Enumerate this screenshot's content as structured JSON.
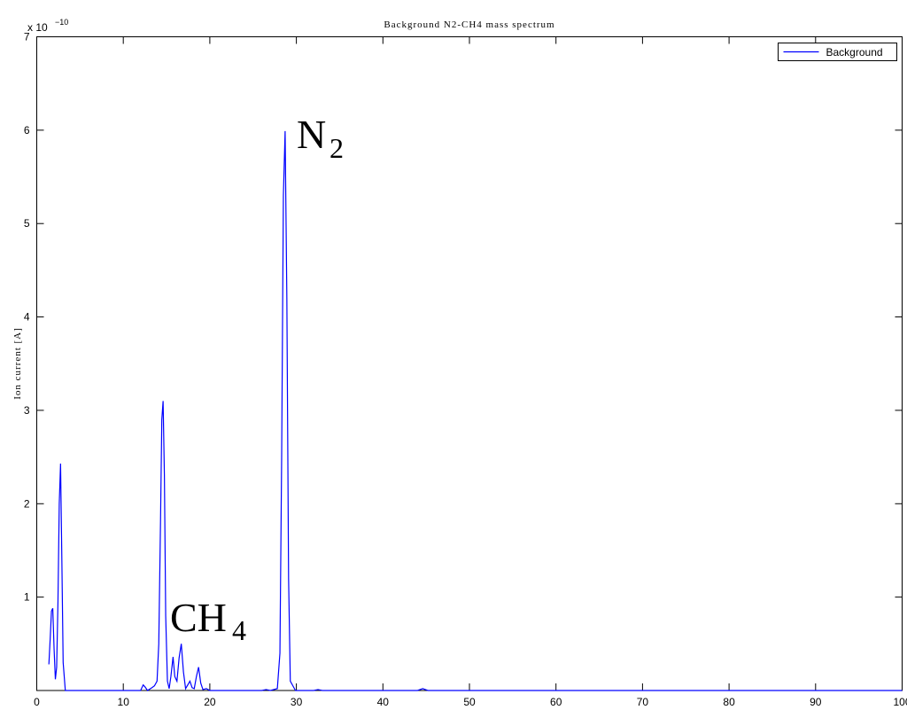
{
  "chart_data": {
    "type": "line",
    "title": "Background N2-CH4 mass spectrum",
    "y_label": "Ion current [A]",
    "y_scale_label": "x 10",
    "y_scale_exponent": "−10",
    "annotations": [
      {
        "text": "CH",
        "subscript": "4"
      },
      {
        "text": "N",
        "subscript": "2"
      }
    ],
    "x": [
      1.4,
      1.55,
      1.7,
      1.85,
      2.0,
      2.15,
      2.3,
      2.45,
      2.6,
      2.75,
      2.9,
      3.05,
      3.3,
      12.0,
      12.3,
      12.5,
      12.8,
      13.3,
      13.6,
      13.9,
      14.1,
      14.3,
      14.45,
      14.6,
      14.75,
      14.9,
      15.1,
      15.3,
      15.5,
      15.75,
      15.95,
      16.2,
      16.45,
      16.7,
      16.95,
      17.2,
      17.45,
      17.7,
      17.95,
      18.2,
      18.45,
      18.7,
      18.95,
      19.2,
      19.6,
      20.0,
      26.0,
      26.5,
      27.0,
      27.8,
      28.1,
      28.3,
      28.5,
      28.7,
      28.9,
      29.1,
      29.3,
      29.6,
      29.9,
      32.0,
      32.5,
      33.0,
      44.0,
      44.6,
      45.2,
      100
    ],
    "series": [
      {
        "name": "Background",
        "color": "#0000ff",
        "values": [
          0.28,
          0.55,
          0.85,
          0.88,
          0.45,
          0.12,
          0.25,
          0.95,
          2.0,
          2.43,
          1.4,
          0.3,
          0,
          0,
          0.06,
          0.04,
          0,
          0.03,
          0.05,
          0.1,
          0.5,
          1.8,
          2.9,
          3.1,
          2.3,
          0.8,
          0.1,
          0.02,
          0.15,
          0.36,
          0.15,
          0.1,
          0.35,
          0.5,
          0.2,
          0.02,
          0.06,
          0.1,
          0.03,
          0.02,
          0.15,
          0.25,
          0.08,
          0.01,
          0.02,
          0,
          0,
          0.01,
          0,
          0.02,
          0.4,
          2.5,
          5.3,
          5.99,
          4.2,
          1.2,
          0.1,
          0.05,
          0,
          0,
          0.01,
          0,
          0,
          0.02,
          0,
          0
        ]
      }
    ],
    "xlim": [
      0,
      100
    ],
    "xticks": [
      0,
      10,
      20,
      30,
      40,
      50,
      60,
      70,
      80,
      90,
      100
    ],
    "ylim": [
      0,
      7
    ],
    "yticks": [
      1,
      2,
      3,
      4,
      5,
      6,
      7
    ],
    "grid": false,
    "legend": "upper right"
  }
}
